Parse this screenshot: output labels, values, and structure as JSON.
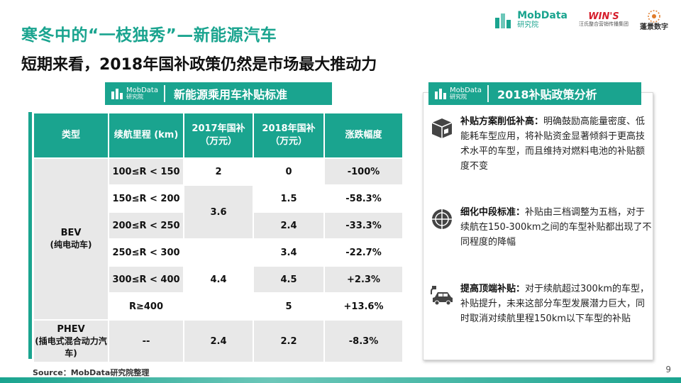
{
  "title": {
    "main": "寒冬中的“一枝独秀”—新能源汽车",
    "sub": "短期来看，2018年国补政策仍然是市场最大推动力"
  },
  "logos": {
    "mobdata": {
      "name": "MobData",
      "sub": "研究院"
    },
    "wins": {
      "name": "WIN'S",
      "sub": "汪氏整合营销传播集团"
    },
    "penjing": {
      "name": "蓬景数字"
    }
  },
  "table_header": {
    "badge_name": "MobData",
    "badge_sub": "研究院",
    "label": "新能源乘用车补贴标准"
  },
  "panel_header": {
    "badge_name": "MobData",
    "badge_sub": "研究院",
    "label": "2018补贴政策分析"
  },
  "table": {
    "columns": [
      "类型",
      "续航里程 (km)",
      "2017年国补（万元）",
      "2018年国补（万元）",
      "涨跌幅度"
    ],
    "bev_label": "BEV",
    "bev_sub": "(纯电动车)",
    "phev_label": "PHEV",
    "phev_sub": "(插电式混合动力汽车)",
    "rows": [
      {
        "range": "100≤R < 150",
        "y2018": "0",
        "change": "-100%"
      },
      {
        "range": "150≤R < 200",
        "y2018": "1.5",
        "change": "-58.3%"
      },
      {
        "range": "200≤R < 250",
        "y2018": "2.4",
        "change": "-33.3%"
      },
      {
        "range": "250≤R < 300",
        "y2018": "3.4",
        "change": "-22.7%"
      },
      {
        "range": "300≤R < 400",
        "y2018": "4.5",
        "change": "+2.3%"
      },
      {
        "range": "R≥400",
        "y2018": "5",
        "change": "+13.6%"
      }
    ],
    "y2017_groups": [
      "2",
      "3.6",
      "4.4"
    ],
    "phev_row": {
      "range": "--",
      "y2017": "2.4",
      "y2018": "2.2",
      "change": "-8.3%"
    }
  },
  "analysis": [
    {
      "icon": "box-down-icon",
      "head": "补贴方案削低补高：",
      "body": "明确鼓励高能量密度、低能耗车型应用，将补贴资金显著倾斜于更高技术水平的车型，而且维持对燃料电池的补贴额度不变"
    },
    {
      "icon": "crosshair-icon",
      "head": "细化中段标准：",
      "body": "补贴由三档调整为五档，对于续航在150-300km之间的车型补贴都出现了不同程度的降幅"
    },
    {
      "icon": "electric-car-icon",
      "head": "提高顶端补贴：",
      "body": "对于续航超过300km的车型，补贴提升，未来这部分车型发展潜力巨大，同时取消对续航里程150km以下车型的补贴"
    }
  ],
  "source": "Source：MobData研究院整理",
  "page_number": "9",
  "colors": {
    "accent": "#1aa48f",
    "negative": "#1aa48f",
    "positive": "#e03636"
  }
}
